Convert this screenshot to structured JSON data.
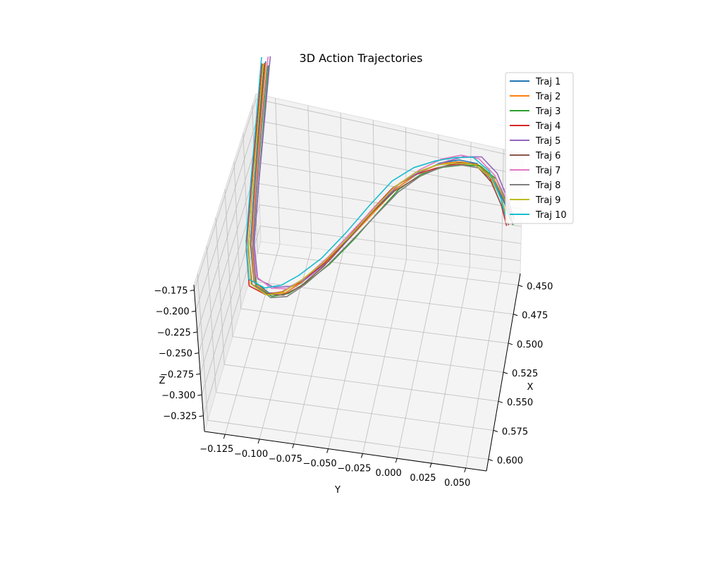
{
  "chart_data": {
    "type": "line",
    "title": "3D Action Trajectories",
    "xlabel": "X",
    "ylabel": "Y",
    "zlabel": "Z",
    "x_ticks": [
      "0.450",
      "0.475",
      "0.500",
      "0.525",
      "0.550",
      "0.575",
      "0.600"
    ],
    "y_ticks": [
      "−0.125",
      "−0.100",
      "−0.075",
      "−0.050",
      "−0.025",
      "0.000",
      "0.025",
      "0.050"
    ],
    "z_ticks": [
      "−0.175",
      "−0.200",
      "−0.225",
      "−0.250",
      "−0.275",
      "−0.300",
      "−0.325"
    ],
    "xlim": [
      0.44,
      0.61
    ],
    "ylim": [
      -0.145,
      0.055
    ],
    "zlim": [
      -0.335,
      -0.165
    ],
    "grid": true,
    "legend_position": "top-right",
    "base_path": [
      [
        0.445,
        -0.14,
        -0.165
      ],
      [
        0.47,
        -0.138,
        -0.195
      ],
      [
        0.5,
        -0.135,
        -0.225
      ],
      [
        0.525,
        -0.132,
        -0.25
      ],
      [
        0.545,
        -0.125,
        -0.262
      ],
      [
        0.552,
        -0.112,
        -0.262
      ],
      [
        0.553,
        -0.1,
        -0.258
      ],
      [
        0.55,
        -0.088,
        -0.25
      ],
      [
        0.545,
        -0.072,
        -0.235
      ],
      [
        0.538,
        -0.055,
        -0.215
      ],
      [
        0.53,
        -0.04,
        -0.198
      ],
      [
        0.522,
        -0.025,
        -0.183
      ],
      [
        0.515,
        -0.01,
        -0.175
      ],
      [
        0.508,
        0.005,
        -0.172
      ],
      [
        0.5,
        0.018,
        -0.175
      ],
      [
        0.49,
        0.03,
        -0.185
      ],
      [
        0.478,
        0.04,
        -0.21
      ],
      [
        0.466,
        0.047,
        -0.245
      ],
      [
        0.458,
        0.05,
        -0.27
      ]
    ],
    "series": [
      {
        "name": "Traj 1",
        "color": "#1f77b4",
        "offset": [
          0.0,
          0.0,
          0.0
        ]
      },
      {
        "name": "Traj 2",
        "color": "#ff7f0e",
        "offset": [
          0.002,
          0.001,
          0.002
        ]
      },
      {
        "name": "Traj 3",
        "color": "#2ca02c",
        "offset": [
          -0.002,
          0.002,
          -0.004
        ]
      },
      {
        "name": "Traj 4",
        "color": "#d62728",
        "offset": [
          0.003,
          -0.002,
          0.001
        ]
      },
      {
        "name": "Traj 5",
        "color": "#9467bd",
        "offset": [
          -0.001,
          0.003,
          0.003
        ]
      },
      {
        "name": "Traj 6",
        "color": "#8c564b",
        "offset": [
          0.001,
          -0.001,
          -0.002
        ]
      },
      {
        "name": "Traj 7",
        "color": "#e377c2",
        "offset": [
          -0.003,
          0.001,
          0.001
        ]
      },
      {
        "name": "Traj 8",
        "color": "#7f7f7f",
        "offset": [
          0.002,
          0.002,
          -0.001
        ]
      },
      {
        "name": "Traj 9",
        "color": "#bcbd22",
        "offset": [
          -0.002,
          -0.002,
          -0.003
        ]
      },
      {
        "name": "Traj 10",
        "color": "#17becf",
        "offset": [
          0.0,
          -0.003,
          0.004
        ]
      }
    ]
  }
}
